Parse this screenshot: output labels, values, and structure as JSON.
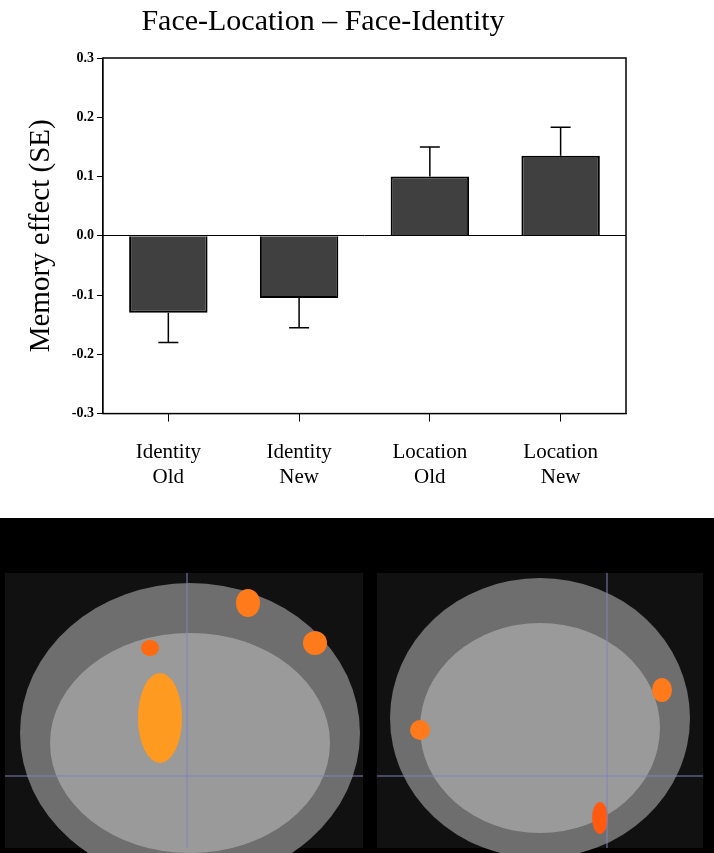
{
  "chart_data": {
    "type": "bar",
    "title": "Face-Location – Face-Identity",
    "y_label": "Memory effect (SE)",
    "categories": [
      "Identity Old",
      "Identity New",
      "Location Old",
      "Location New"
    ],
    "values": [
      -0.13,
      -0.105,
      0.1,
      0.135
    ],
    "errors": [
      0.05,
      0.05,
      0.05,
      0.048
    ],
    "color": "#404040",
    "ylim": [
      -0.3,
      0.3
    ],
    "yticks": [
      -0.3,
      -0.2,
      -0.1,
      {
        "value": 0,
        "label": "0.0"
      },
      0.1,
      0.2,
      0.3
    ],
    "grid": false
  }
}
